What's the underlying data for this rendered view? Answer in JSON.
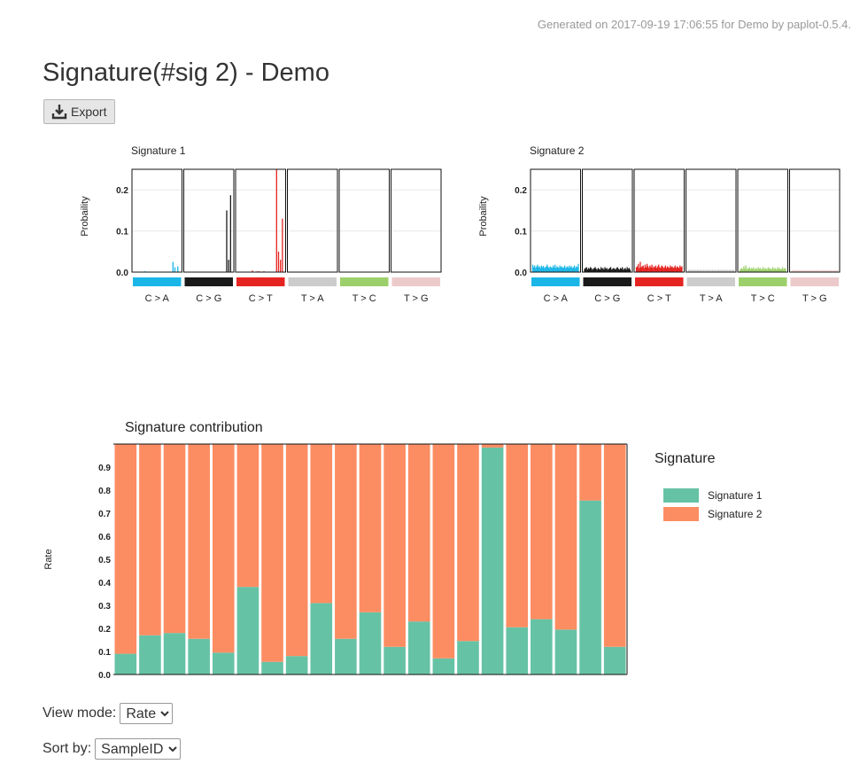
{
  "header": {
    "generated_text": "Generated on 2017-09-19 17:06:55 for Demo by paplot-0.5.4.",
    "title": "Signature(#sig 2) - Demo",
    "export_label": "Export"
  },
  "signatures": [
    {
      "title": "Signature 1",
      "ylabel": "Probaility",
      "ylim": [
        0,
        0.25
      ],
      "yticks": [
        "0.0",
        "0.1",
        "0.2"
      ],
      "categories": [
        "C > A",
        "C > G",
        "C > T",
        "T > A",
        "T > C",
        "T > G"
      ],
      "colors": [
        "#1bb6e8",
        "#1a1a1a",
        "#e52421",
        "#cccccc",
        "#9cd06b",
        "#eccacb"
      ],
      "values": [
        [
          0.001,
          0.001,
          0.001,
          0.001,
          0.001,
          0.001,
          0.001,
          0.001,
          0.001,
          0.001,
          0.001,
          0.002,
          0.001,
          0.001,
          0.001,
          0.001,
          0.001,
          0.001,
          0.001,
          0.001,
          0.001,
          0.001,
          0.001,
          0.001,
          0.001,
          0.001,
          0.001,
          0.001,
          0.001,
          0.001,
          0.001,
          0.001,
          0.001,
          0.001,
          0.001,
          0.001,
          0.001,
          0.001,
          0.001,
          0.001,
          0.025,
          0.001,
          0.012,
          0.001,
          0.001,
          0.014,
          0.001,
          0.001
        ],
        [
          0.001,
          0.001,
          0.001,
          0.001,
          0.001,
          0.001,
          0.001,
          0.001,
          0.001,
          0.001,
          0.001,
          0.001,
          0.001,
          0.001,
          0.001,
          0.001,
          0.001,
          0.001,
          0.001,
          0.001,
          0.001,
          0.001,
          0.001,
          0.001,
          0.001,
          0.001,
          0.001,
          0.001,
          0.001,
          0.001,
          0.001,
          0.001,
          0.001,
          0.001,
          0.001,
          0.001,
          0.001,
          0.001,
          0.001,
          0.001,
          0.001,
          0.001,
          0.15,
          0.001,
          0.03,
          0.001,
          0.187,
          0.001
        ],
        [
          0.001,
          0.001,
          0.001,
          0.001,
          0.001,
          0.001,
          0.001,
          0.001,
          0.001,
          0.001,
          0.001,
          0.001,
          0.001,
          0.001,
          0.001,
          0.004,
          0.001,
          0.001,
          0.001,
          0.001,
          0.002,
          0.001,
          0.002,
          0.001,
          0.001,
          0.001,
          0.001,
          0.002,
          0.001,
          0.001,
          0.001,
          0.001,
          0.001,
          0.001,
          0.001,
          0.001,
          0.001,
          0.001,
          0.001,
          0.001,
          0.25,
          0.001,
          0.05,
          0.001,
          0.03,
          0.001,
          0.13,
          0.001
        ],
        [
          0.001,
          0.001,
          0.001,
          0.001,
          0.001,
          0.001,
          0.001,
          0.001,
          0.001,
          0.001,
          0.001,
          0.001,
          0.001,
          0.001,
          0.001,
          0.001,
          0.001,
          0.001,
          0.001,
          0.001,
          0.001,
          0.001,
          0.001,
          0.001,
          0.001,
          0.001,
          0.001,
          0.001,
          0.001,
          0.001,
          0.001,
          0.001,
          0.001,
          0.001,
          0.001,
          0.001,
          0.001,
          0.001,
          0.001,
          0.001,
          0.001,
          0.001,
          0.001,
          0.001,
          0.001,
          0.001,
          0.001,
          0.001
        ],
        [
          0.001,
          0.001,
          0.001,
          0.001,
          0.001,
          0.001,
          0.001,
          0.001,
          0.001,
          0.001,
          0.001,
          0.001,
          0.001,
          0.001,
          0.001,
          0.001,
          0.001,
          0.001,
          0.001,
          0.001,
          0.001,
          0.001,
          0.001,
          0.001,
          0.001,
          0.001,
          0.001,
          0.001,
          0.001,
          0.001,
          0.001,
          0.001,
          0.001,
          0.001,
          0.001,
          0.001,
          0.001,
          0.001,
          0.001,
          0.001,
          0.001,
          0.001,
          0.001,
          0.001,
          0.001,
          0.001,
          0.001,
          0.001
        ],
        [
          0.001,
          0.001,
          0.001,
          0.001,
          0.001,
          0.001,
          0.001,
          0.001,
          0.001,
          0.001,
          0.001,
          0.001,
          0.001,
          0.001,
          0.001,
          0.001,
          0.001,
          0.001,
          0.001,
          0.001,
          0.001,
          0.001,
          0.001,
          0.001,
          0.001,
          0.001,
          0.001,
          0.001,
          0.001,
          0.001,
          0.001,
          0.001,
          0.001,
          0.001,
          0.001,
          0.001,
          0.001,
          0.001,
          0.001,
          0.001,
          0.001,
          0.001,
          0.001,
          0.001,
          0.001,
          0.001,
          0.001,
          0.001
        ]
      ]
    },
    {
      "title": "Signature 2",
      "ylabel": "Probaility",
      "ylim": [
        0,
        0.25
      ],
      "yticks": [
        "0.0",
        "0.1",
        "0.2"
      ],
      "categories": [
        "C > A",
        "C > G",
        "C > T",
        "T > A",
        "T > C",
        "T > G"
      ],
      "colors": [
        "#1bb6e8",
        "#1a1a1a",
        "#e52421",
        "#cccccc",
        "#9cd06b",
        "#eccacb"
      ],
      "values": [
        [
          0.018,
          0.012,
          0.016,
          0.01,
          0.014,
          0.018,
          0.012,
          0.014,
          0.01,
          0.016,
          0.012,
          0.015,
          0.01,
          0.012,
          0.014,
          0.018,
          0.012,
          0.01,
          0.014,
          0.012,
          0.01,
          0.016,
          0.012,
          0.018,
          0.01,
          0.014,
          0.012,
          0.01,
          0.016,
          0.012,
          0.014,
          0.01,
          0.012,
          0.016,
          0.01,
          0.012,
          0.014,
          0.01,
          0.016,
          0.012,
          0.014,
          0.01,
          0.012,
          0.016,
          0.01,
          0.014,
          0.012,
          0.02
        ],
        [
          0.008,
          0.01,
          0.012,
          0.006,
          0.01,
          0.008,
          0.012,
          0.01,
          0.006,
          0.008,
          0.01,
          0.012,
          0.008,
          0.006,
          0.01,
          0.008,
          0.006,
          0.012,
          0.008,
          0.01,
          0.006,
          0.012,
          0.008,
          0.01,
          0.006,
          0.008,
          0.01,
          0.012,
          0.006,
          0.008,
          0.01,
          0.008,
          0.006,
          0.01,
          0.012,
          0.008,
          0.006,
          0.01,
          0.008,
          0.012,
          0.006,
          0.008,
          0.01,
          0.006,
          0.012,
          0.008,
          0.01,
          0.006
        ],
        [
          0.012,
          0.014,
          0.02,
          0.01,
          0.025,
          0.012,
          0.014,
          0.016,
          0.01,
          0.018,
          0.012,
          0.02,
          0.014,
          0.01,
          0.016,
          0.012,
          0.018,
          0.01,
          0.014,
          0.012,
          0.016,
          0.01,
          0.014,
          0.018,
          0.012,
          0.01,
          0.016,
          0.014,
          0.01,
          0.012,
          0.016,
          0.01,
          0.014,
          0.012,
          0.01,
          0.016,
          0.012,
          0.014,
          0.01,
          0.012,
          0.016,
          0.01,
          0.014,
          0.012,
          0.01,
          0.016,
          0.012,
          0.014
        ],
        [
          0.004,
          0.006,
          0.005,
          0.004,
          0.006,
          0.005,
          0.004,
          0.006,
          0.005,
          0.004,
          0.006,
          0.005,
          0.004,
          0.006,
          0.005,
          0.004,
          0.006,
          0.005,
          0.004,
          0.006,
          0.005,
          0.004,
          0.006,
          0.005,
          0.004,
          0.006,
          0.005,
          0.004,
          0.006,
          0.005,
          0.004,
          0.006,
          0.005,
          0.004,
          0.006,
          0.005,
          0.004,
          0.006,
          0.005,
          0.004,
          0.006,
          0.005,
          0.004,
          0.006,
          0.005,
          0.004,
          0.006,
          0.005
        ],
        [
          0.006,
          0.008,
          0.01,
          0.006,
          0.014,
          0.008,
          0.016,
          0.006,
          0.01,
          0.008,
          0.012,
          0.006,
          0.01,
          0.008,
          0.012,
          0.006,
          0.008,
          0.01,
          0.006,
          0.012,
          0.008,
          0.01,
          0.006,
          0.008,
          0.012,
          0.006,
          0.01,
          0.008,
          0.006,
          0.012,
          0.008,
          0.01,
          0.006,
          0.008,
          0.012,
          0.006,
          0.01,
          0.008,
          0.006,
          0.012,
          0.008,
          0.01,
          0.006,
          0.008,
          0.012,
          0.006,
          0.01,
          0.008
        ],
        [
          0.003,
          0.004,
          0.005,
          0.003,
          0.004,
          0.005,
          0.003,
          0.004,
          0.005,
          0.003,
          0.004,
          0.005,
          0.003,
          0.004,
          0.005,
          0.003,
          0.004,
          0.005,
          0.003,
          0.004,
          0.005,
          0.003,
          0.004,
          0.005,
          0.003,
          0.004,
          0.005,
          0.003,
          0.004,
          0.005,
          0.003,
          0.004,
          0.005,
          0.003,
          0.004,
          0.005,
          0.003,
          0.004,
          0.005,
          0.003,
          0.004,
          0.005,
          0.003,
          0.004,
          0.005,
          0.003,
          0.004,
          0.005
        ]
      ]
    }
  ],
  "chart_data": {
    "type": "bar",
    "stacked": true,
    "title": "Signature contribution",
    "ylabel": "Rate",
    "xlabel": "",
    "ylim": [
      0,
      1
    ],
    "yticks": [
      "0.0",
      "0.1",
      "0.2",
      "0.3",
      "0.4",
      "0.5",
      "0.6",
      "0.7",
      "0.8",
      "0.9"
    ],
    "legend_title": "Signature",
    "legend_position": "right",
    "series": [
      {
        "name": "Signature 1",
        "color": "#66c2a5",
        "values": [
          0.09,
          0.17,
          0.18,
          0.155,
          0.095,
          0.38,
          0.055,
          0.08,
          0.31,
          0.155,
          0.27,
          0.12,
          0.23,
          0.07,
          0.145,
          0.985,
          0.205,
          0.24,
          0.195,
          0.755,
          0.12
        ]
      },
      {
        "name": "Signature 2",
        "color": "#fc8d62",
        "values": [
          0.91,
          0.83,
          0.82,
          0.845,
          0.905,
          0.62,
          0.945,
          0.92,
          0.69,
          0.845,
          0.73,
          0.88,
          0.77,
          0.93,
          0.855,
          0.015,
          0.795,
          0.76,
          0.805,
          0.245,
          0.88
        ]
      }
    ]
  },
  "controls": {
    "view_mode_label": "View mode:",
    "view_mode_value": "Rate",
    "sort_by_label": "Sort by:",
    "sort_by_value": "SampleID"
  }
}
